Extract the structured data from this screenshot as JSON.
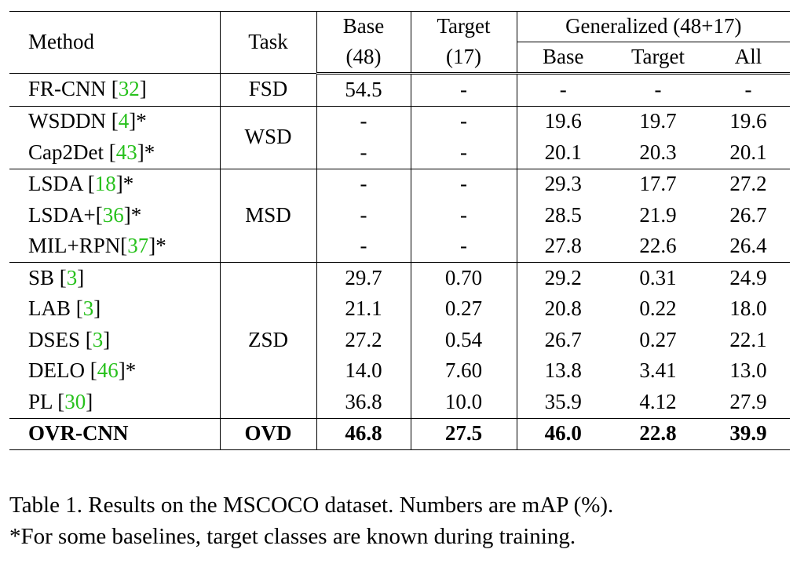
{
  "table": {
    "headers": {
      "method": "Method",
      "task": "Task",
      "base": "Base",
      "base_count": "(48)",
      "target": "Target",
      "target_count": "(17)",
      "generalized": "Generalized (48+17)",
      "gen_base": "Base",
      "gen_target": "Target",
      "gen_all": "All"
    },
    "rows": [
      {
        "method": "FR-CNN [",
        "ref": "32",
        "suffix": "]",
        "task": "FSD",
        "base": "54.5",
        "target": "-",
        "gen_base": "-",
        "gen_target": "-",
        "gen_all": "-"
      },
      {
        "method": "WSDDN [",
        "ref": "4",
        "suffix": "]*",
        "task": "WSD",
        "base": "-",
        "target": "-",
        "gen_base": "19.6",
        "gen_target": "19.7",
        "gen_all": "19.6"
      },
      {
        "method": "Cap2Det [",
        "ref": "43",
        "suffix": "]*",
        "base": "-",
        "target": "-",
        "gen_base": "20.1",
        "gen_target": "20.3",
        "gen_all": "20.1"
      },
      {
        "method": "LSDA [",
        "ref": "18",
        "suffix": "]*",
        "task": "MSD",
        "base": "-",
        "target": "-",
        "gen_base": "29.3",
        "gen_target": "17.7",
        "gen_all": "27.2"
      },
      {
        "method": "LSDA+[",
        "ref": "36",
        "suffix": "]*",
        "base": "-",
        "target": "-",
        "gen_base": "28.5",
        "gen_target": "21.9",
        "gen_all": "26.7"
      },
      {
        "method": "MIL+RPN[",
        "ref": "37",
        "suffix": "]*",
        "base": "-",
        "target": "-",
        "gen_base": "27.8",
        "gen_target": "22.6",
        "gen_all": "26.4"
      },
      {
        "method": "SB [",
        "ref": "3",
        "suffix": "]",
        "task": "ZSD",
        "base": "29.7",
        "target": "0.70",
        "gen_base": "29.2",
        "gen_target": "0.31",
        "gen_all": "24.9"
      },
      {
        "method": "LAB [",
        "ref": "3",
        "suffix": "]",
        "base": "21.1",
        "target": "0.27",
        "gen_base": "20.8",
        "gen_target": "0.22",
        "gen_all": "18.0"
      },
      {
        "method": "DSES [",
        "ref": "3",
        "suffix": "]",
        "base": "27.2",
        "target": "0.54",
        "gen_base": "26.7",
        "gen_target": "0.27",
        "gen_all": "22.1"
      },
      {
        "method": "DELO [",
        "ref": "46",
        "suffix": "]*",
        "base": "14.0",
        "target": "7.60",
        "gen_base": "13.8",
        "gen_target": "3.41",
        "gen_all": "13.0"
      },
      {
        "method": "PL [",
        "ref": "30",
        "suffix": "]",
        "base": "36.8",
        "target": "10.0",
        "gen_base": "35.9",
        "gen_target": "4.12",
        "gen_all": "27.9"
      },
      {
        "method": "OVR-CNN",
        "task": "OVD",
        "base": "46.8",
        "target": "27.5",
        "gen_base": "46.0",
        "gen_target": "22.8",
        "gen_all": "39.9"
      }
    ]
  },
  "caption": {
    "line1": "Table 1. Results on the MSCOCO dataset. Numbers are mAP (%).",
    "line2": "*For some baselines, target classes are known during training."
  },
  "colors": {
    "reference_link": "#27c11c",
    "text": "#000000",
    "background": "#ffffff"
  }
}
